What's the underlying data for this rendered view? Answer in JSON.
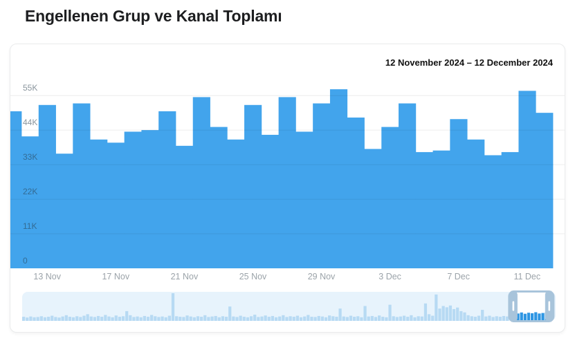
{
  "page": {
    "title": "Engellenen Grup ve Kanal Toplamı"
  },
  "header": {
    "date_range": "12 November 2024 – 12 December 2024"
  },
  "colors": {
    "bar_blue": "#42A4EC",
    "nav_bar_light": "#B7DAF3",
    "nav_bar_selected": "#2E96E3",
    "nav_background": "#E7F3FC",
    "nav_frame": "#A8C4DB",
    "gridline": "rgba(0,0,0,0.075)",
    "y_label": "rgba(40,60,75,0.55)",
    "x_label": "#9BA3A9",
    "title_text": "#1d1e20"
  },
  "chart_data": {
    "type": "bar",
    "title": "Engellenen Grup ve Kanal Toplamı",
    "date_range_label": "12 November 2024 – 12 December 2024",
    "categories": [
      "11 Nov",
      "12 Nov",
      "13 Nov",
      "14 Nov",
      "15 Nov",
      "16 Nov",
      "17 Nov",
      "18 Nov",
      "19 Nov",
      "20 Nov",
      "21 Nov",
      "22 Nov",
      "23 Nov",
      "24 Nov",
      "25 Nov",
      "26 Nov",
      "27 Nov",
      "28 Nov",
      "29 Nov",
      "30 Nov",
      "1 Dec",
      "2 Dec",
      "3 Dec",
      "4 Dec",
      "5 Dec",
      "6 Dec",
      "7 Dec",
      "8 Dec",
      "9 Dec",
      "10 Dec",
      "11 Dec",
      "12 Dec"
    ],
    "values": [
      50000,
      42000,
      52000,
      36500,
      52500,
      41000,
      40000,
      43500,
      44000,
      50000,
      39000,
      54500,
      45000,
      41000,
      52000,
      42500,
      54500,
      43500,
      52500,
      57000,
      48000,
      38000,
      45000,
      52500,
      37000,
      37500,
      47500,
      41000,
      36000,
      37000,
      56500,
      49500
    ],
    "first_bar_partial": true,
    "y_ticks": [
      "0",
      "11K",
      "22K",
      "33K",
      "44K",
      "55K"
    ],
    "y_tick_values": [
      0,
      11000,
      22000,
      33000,
      44000,
      55000
    ],
    "ylim": [
      0,
      59000
    ],
    "x_tick_labels": [
      "13 Nov",
      "17 Nov",
      "21 Nov",
      "25 Nov",
      "29 Nov",
      "3 Dec",
      "7 Dec",
      "11 Dec"
    ],
    "x_tick_indices": [
      2,
      6,
      10,
      14,
      18,
      22,
      26,
      30
    ],
    "grid": true,
    "legend": "none"
  },
  "navigator": {
    "values": [
      8,
      5,
      9,
      6,
      7,
      10,
      6,
      8,
      12,
      7,
      5,
      9,
      14,
      8,
      6,
      10,
      7,
      12,
      18,
      9,
      7,
      11,
      8,
      15,
      9,
      6,
      13,
      8,
      10,
      30,
      14,
      7,
      9,
      6,
      11,
      8,
      15,
      10,
      7,
      9,
      6,
      12,
      100,
      10,
      8,
      7,
      13,
      9,
      6,
      10,
      8,
      14,
      7,
      9,
      11,
      6,
      10,
      8,
      48,
      9,
      7,
      12,
      8,
      6,
      10,
      16,
      7,
      9,
      13,
      8,
      11,
      6,
      9,
      14,
      7,
      10,
      8,
      12,
      6,
      9,
      15,
      8,
      7,
      11,
      9,
      6,
      13,
      10,
      8,
      40,
      9,
      7,
      12,
      8,
      10,
      6,
      50,
      9,
      11,
      7,
      13,
      8,
      6,
      55,
      10,
      7,
      9,
      12,
      8,
      14,
      6,
      10,
      9,
      60,
      18,
      12,
      95,
      40,
      50,
      45,
      52,
      38,
      44,
      30,
      25,
      14,
      10,
      8,
      12,
      35,
      9,
      12,
      7,
      10,
      8,
      11,
      9,
      16,
      20,
      18,
      22,
      17,
      21,
      19,
      23,
      18,
      20,
      22,
      17,
      19
    ],
    "selection_start_index": 137,
    "selection_end_index": 149
  }
}
